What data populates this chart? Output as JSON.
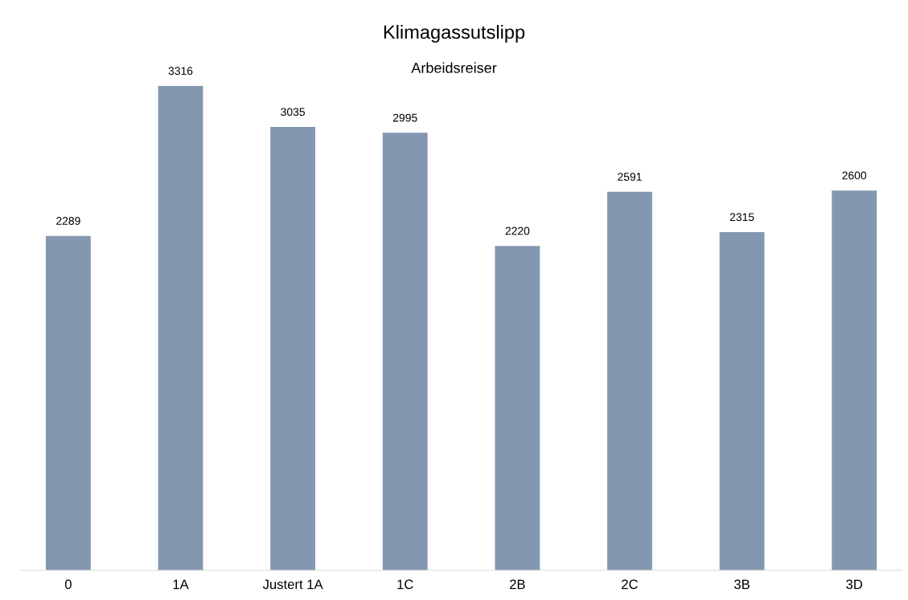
{
  "chart_data": {
    "type": "bar",
    "title": "Klimagassutslipp",
    "subtitle": "Arbeidsreiser",
    "categories": [
      "0",
      "1A",
      "Justert 1A",
      "1C",
      "2B",
      "2C",
      "3B",
      "3D"
    ],
    "values": [
      2289,
      3316,
      3035,
      2995,
      2220,
      2591,
      2315,
      2600
    ],
    "color": "#8497b0",
    "data_labels": true,
    "grid": false,
    "legend": false,
    "tick_labels": "x"
  }
}
